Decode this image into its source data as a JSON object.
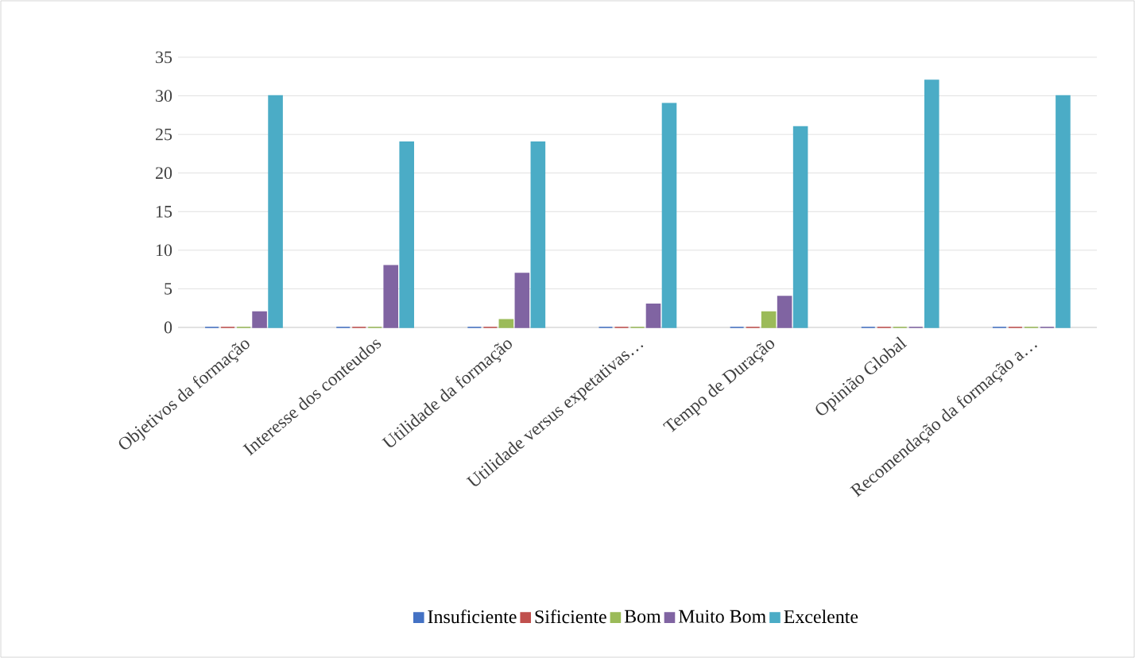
{
  "chart_data": {
    "type": "bar",
    "categories": [
      "Objetivos da formação",
      "Interesse dos conteudos",
      "Utilidade da formação",
      "Utilidade versus expetativas…",
      "Tempo de Duração",
      "Opinião Global",
      "Recomendação da formação a…"
    ],
    "series": [
      {
        "name": "Insuficiente",
        "color": "#4472c4",
        "values": [
          0,
          0,
          0,
          0,
          0,
          0,
          0
        ]
      },
      {
        "name": "Sificiente",
        "color": "#c0504d",
        "values": [
          0,
          0,
          0,
          0,
          0,
          0,
          0
        ]
      },
      {
        "name": "Bom",
        "color": "#9bbb59",
        "values": [
          0,
          0,
          1,
          0,
          2,
          0,
          0
        ]
      },
      {
        "name": "Muito Bom",
        "color": "#8064a2",
        "values": [
          2,
          8,
          7,
          3,
          4,
          0,
          0
        ]
      },
      {
        "name": "Excelente",
        "color": "#4bacc6",
        "values": [
          30,
          24,
          24,
          29,
          26,
          32,
          30
        ]
      }
    ],
    "ylim": [
      0,
      35
    ],
    "yticks": [
      0,
      5,
      10,
      15,
      20,
      25,
      30,
      35
    ],
    "grid": "y",
    "legend": "bottom"
  }
}
